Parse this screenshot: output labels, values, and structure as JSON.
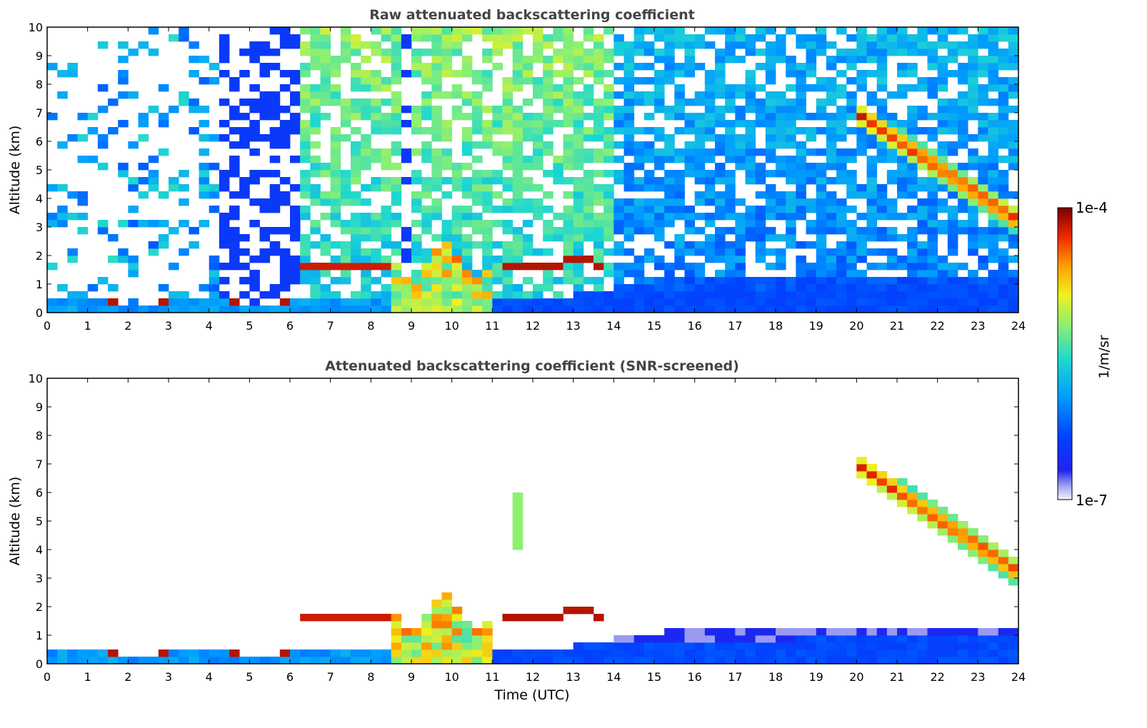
{
  "chart_data": [
    {
      "type": "heatmap",
      "title": "Raw attenuated backscattering coefficient",
      "xlabel": "",
      "ylabel": "Altitude (km)",
      "xlim": [
        0,
        24
      ],
      "ylim": [
        0,
        10
      ],
      "xticks": [
        "0",
        "1",
        "2",
        "3",
        "4",
        "5",
        "6",
        "7",
        "8",
        "9",
        "10",
        "11",
        "12",
        "13",
        "14",
        "15",
        "16",
        "17",
        "18",
        "19",
        "20",
        "21",
        "22",
        "23",
        "24"
      ],
      "yticks": [
        "0",
        "1",
        "2",
        "3",
        "4",
        "5",
        "6",
        "7",
        "8",
        "9",
        "10"
      ],
      "screened": false,
      "features": [
        {
          "name": "boundary layer top",
          "t_start": 0,
          "t_end": 6.2,
          "altitude_km": 0.35,
          "level": 1.0
        },
        {
          "name": "low cloud deck",
          "t_start": 6.3,
          "t_end": 8.6,
          "altitude_km": 1.6,
          "level": 0.95
        },
        {
          "name": "convective plume",
          "t_start": 8.6,
          "t_end": 11.1,
          "altitude_km": 1.5,
          "level": 0.75
        },
        {
          "name": "elevated cloud",
          "t_start": 11.2,
          "t_end": 13.8,
          "altitude_km": 1.7,
          "level": 0.95
        },
        {
          "name": "cirrus descending",
          "t_start": 20.0,
          "t_end": 24.0,
          "altitude_km_start": 7.0,
          "altitude_km_end": 3.2,
          "level": 0.85
        }
      ]
    },
    {
      "type": "heatmap",
      "title": "Attenuated backscattering coefficient (SNR-screened)",
      "xlabel": "Time (UTC)",
      "ylabel": "Altitude (km)",
      "xlim": [
        0,
        24
      ],
      "ylim": [
        0,
        10
      ],
      "xticks": [
        "0",
        "1",
        "2",
        "3",
        "4",
        "5",
        "6",
        "7",
        "8",
        "9",
        "10",
        "11",
        "12",
        "13",
        "14",
        "15",
        "16",
        "17",
        "18",
        "19",
        "20",
        "21",
        "22",
        "23",
        "24"
      ],
      "yticks": [
        "0",
        "1",
        "2",
        "3",
        "4",
        "5",
        "6",
        "7",
        "8",
        "9",
        "10"
      ],
      "screened": true
    }
  ],
  "colorbar": {
    "label": "1/m/sr",
    "max_label": "1e-4",
    "min_label": "1e-7",
    "scale": "log",
    "min": 1e-07,
    "max": 0.0001
  }
}
